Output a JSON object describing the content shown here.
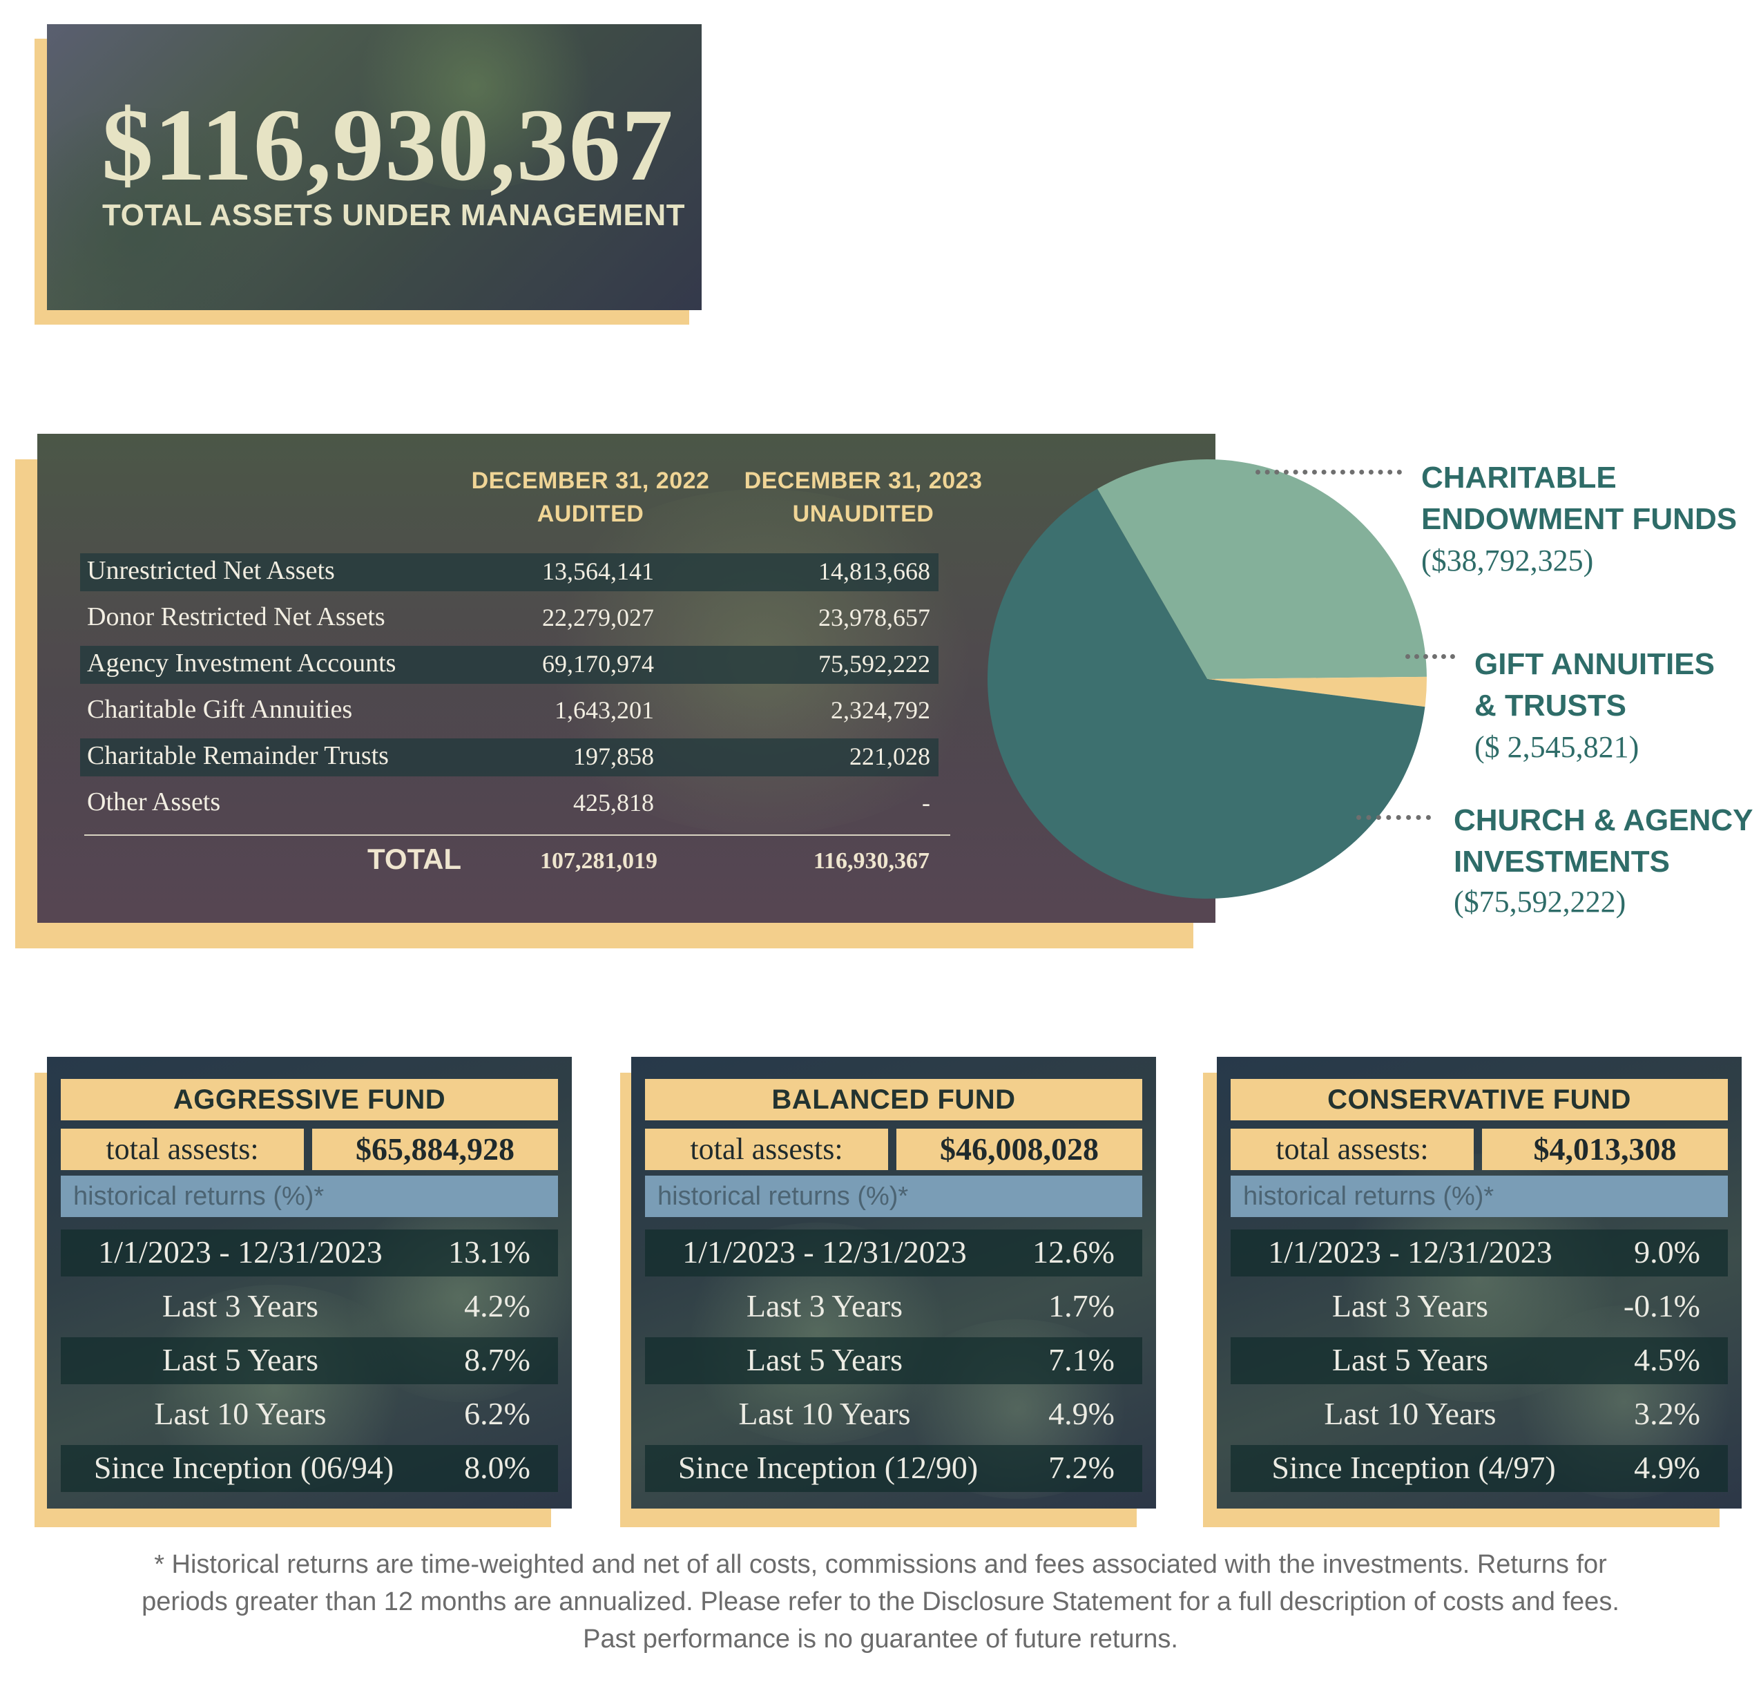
{
  "hero": {
    "amount": "$116,930,367",
    "label": "TOTAL ASSETS UNDER MANAGEMENT"
  },
  "assets_table": {
    "col1": {
      "date": "DECEMBER 31, 2022",
      "status": "AUDITED"
    },
    "col2": {
      "date": "DECEMBER 31, 2023",
      "status": "UNAUDITED"
    },
    "rows": [
      {
        "label": "Unrestricted Net Assets",
        "v2022": "13,564,141",
        "v2023": "14,813,668"
      },
      {
        "label": "Donor Restricted Net Assets",
        "v2022": "22,279,027",
        "v2023": "23,978,657"
      },
      {
        "label": "Agency Investment Accounts",
        "v2022": "69,170,974",
        "v2023": "75,592,222"
      },
      {
        "label": "Charitable Gift Annuities",
        "v2022": "1,643,201",
        "v2023": "2,324,792"
      },
      {
        "label": "Charitable Remainder Trusts",
        "v2022": "197,858",
        "v2023": "221,028"
      },
      {
        "label": "Other Assets",
        "v2022": "425,818",
        "v2023": "-"
      }
    ],
    "total": {
      "label": "TOTAL",
      "v2022": "107,281,019",
      "v2023": "116,930,367"
    }
  },
  "chart_data": {
    "type": "pie",
    "labels": [
      "CHARITABLE ENDOWMENT FUNDS",
      "GIFT ANNUITIES & TRUSTS",
      "CHURCH & AGENCY INVESTMENTS"
    ],
    "values": [
      38792325,
      2545821,
      75592222
    ],
    "value_labels": [
      "($38,792,325)",
      "($ 2,545,821)",
      "($75,592,222)"
    ],
    "colors": [
      "#84b09a",
      "#f3cf8c",
      "#3d706f"
    ],
    "label_lines": [
      [
        "CHARITABLE",
        "ENDOWMENT FUNDS"
      ],
      [
        "GIFT ANNUITIES",
        "& TRUSTS"
      ],
      [
        "CHURCH & AGENCY",
        "INVESTMENTS"
      ]
    ]
  },
  "funds": [
    {
      "title": "AGGRESSIVE FUND",
      "total_label": "total assests:",
      "total_value": "$65,884,928",
      "hist_label": "historical returns (%)*",
      "returns": [
        {
          "period": "1/1/2023 - 12/31/2023",
          "value": "13.1%"
        },
        {
          "period": "Last 3 Years",
          "value": "4.2%"
        },
        {
          "period": "Last 5 Years",
          "value": "8.7%"
        },
        {
          "period": "Last 10 Years",
          "value": "6.2%"
        },
        {
          "period": "Since Inception (06/94)",
          "value": "8.0%"
        }
      ]
    },
    {
      "title": "BALANCED FUND",
      "total_label": "total assests:",
      "total_value": "$46,008,028",
      "hist_label": "historical returns (%)*",
      "returns": [
        {
          "period": "1/1/2023 - 12/31/2023",
          "value": "12.6%"
        },
        {
          "period": "Last 3 Years",
          "value": "1.7%"
        },
        {
          "period": "Last 5 Years",
          "value": "7.1%"
        },
        {
          "period": "Last 10 Years",
          "value": "4.9%"
        },
        {
          "period": "Since Inception (12/90)",
          "value": "7.2%"
        }
      ]
    },
    {
      "title": "CONSERVATIVE FUND",
      "total_label": "total assests:",
      "total_value": "$4,013,308",
      "hist_label": "historical returns (%)*",
      "returns": [
        {
          "period": "1/1/2023 - 12/31/2023",
          "value": "9.0%"
        },
        {
          "period": "Last 3 Years",
          "value": "-0.1%"
        },
        {
          "period": "Last 5 Years",
          "value": "4.5%"
        },
        {
          "period": "Last 10 Years",
          "value": "3.2%"
        },
        {
          "period": "Since Inception (4/97)",
          "value": "4.9%"
        }
      ]
    }
  ],
  "footnote": {
    "line1": "* Historical returns are time-weighted and net of all costs, commissions and fees associated with the investments. Returns for",
    "line2": "periods greater than 12 months are annualized. Please refer to the Disclosure Statement for a full description of costs and fees.",
    "line3": "Past performance is no guarantee of future returns."
  }
}
